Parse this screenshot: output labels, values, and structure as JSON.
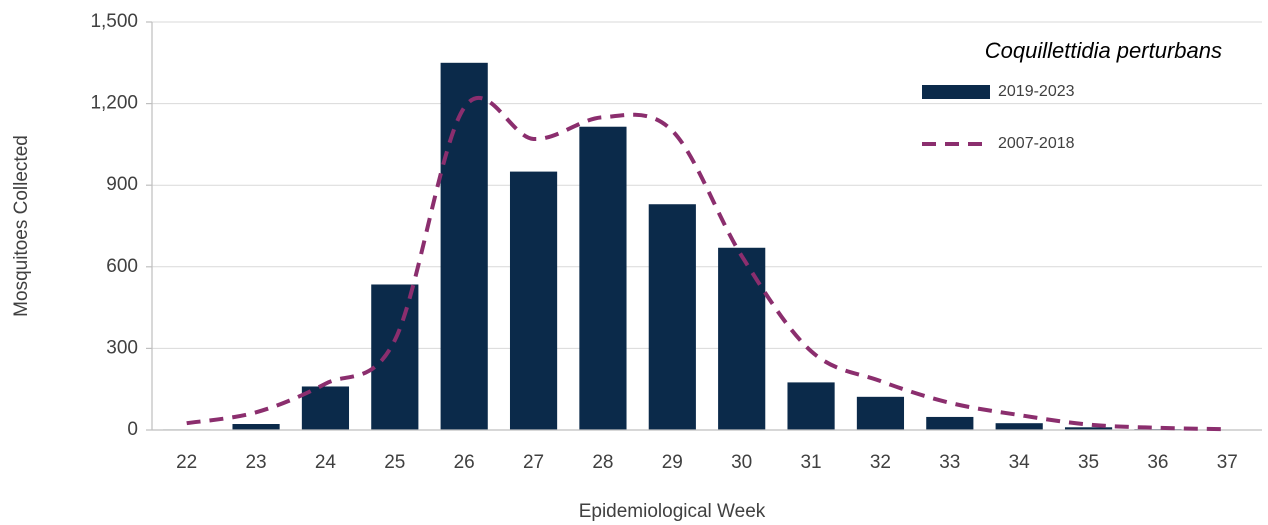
{
  "chart_data": {
    "type": "bar",
    "title": "Coquillettidia perturbans",
    "x_label": "Epidemiological Week",
    "y_label": "Mosquitoes Collected",
    "categories": [
      "22",
      "23",
      "24",
      "25",
      "26",
      "27",
      "28",
      "29",
      "30",
      "31",
      "32",
      "33",
      "34",
      "35",
      "36",
      "37"
    ],
    "series": [
      {
        "name": "2019-2023",
        "type": "bar",
        "color": "#0b2a4a",
        "values": [
          2,
          22,
          160,
          535,
          1350,
          950,
          1115,
          830,
          670,
          175,
          122,
          48,
          25,
          10,
          3,
          1
        ]
      },
      {
        "name": "2007-2018",
        "type": "line",
        "style": "dashed",
        "color": "#8b2e6e",
        "values": [
          25,
          65,
          170,
          330,
          1185,
          1070,
          1150,
          1100,
          640,
          290,
          180,
          100,
          55,
          20,
          8,
          3
        ]
      }
    ],
    "ylim": [
      0,
      1500
    ],
    "yticks": [
      0,
      300,
      600,
      900,
      {
        "value": 1200,
        "label": "1,200"
      },
      {
        "value": 1500,
        "label": "1,500"
      }
    ],
    "grid": true,
    "legend": "top-right"
  }
}
